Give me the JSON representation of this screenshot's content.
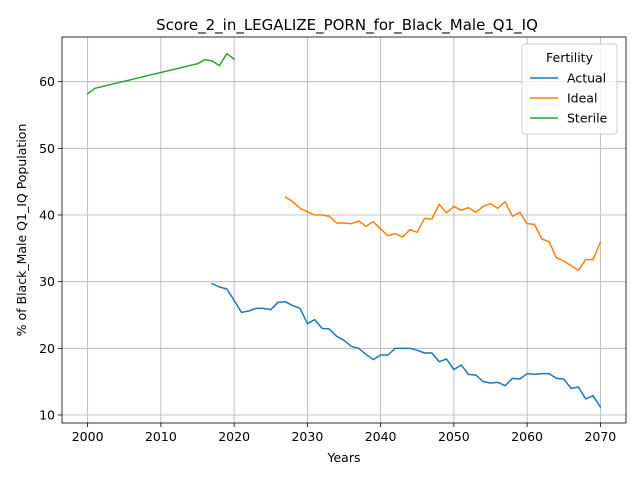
{
  "chart_data": {
    "type": "line",
    "title": "Score_2_in_LEGALIZE_PORN_for_Black_Male_Q1_IQ",
    "xlabel": "Years",
    "ylabel": "% of Black_Male Q1_IQ Population",
    "xlim": [
      1996.5,
      2073.5
    ],
    "ylim": [
      8.8,
      66.7
    ],
    "xticks": [
      2000,
      2010,
      2020,
      2030,
      2040,
      2050,
      2060,
      2070
    ],
    "yticks": [
      10,
      20,
      30,
      40,
      50,
      60
    ],
    "grid": true,
    "legend": {
      "title": "Fertility",
      "placement": "top-right"
    },
    "series": [
      {
        "name": "Actual",
        "color": "#1f77b4",
        "x": [
          2017,
          2018,
          2019,
          2020,
          2021,
          2022,
          2023,
          2024,
          2025,
          2026,
          2027,
          2028,
          2029,
          2030,
          2031,
          2032,
          2033,
          2034,
          2035,
          2036,
          2037,
          2038,
          2039,
          2040,
          2041,
          2042,
          2043,
          2044,
          2045,
          2046,
          2047,
          2048,
          2049,
          2050,
          2051,
          2052,
          2053,
          2054,
          2055,
          2056,
          2057,
          2058,
          2059,
          2060,
          2061,
          2062,
          2063,
          2064,
          2065,
          2066,
          2067,
          2068,
          2069,
          2070
        ],
        "y": [
          29.7,
          29.2,
          28.9,
          27.2,
          25.4,
          25.6,
          26.0,
          26.0,
          25.8,
          26.9,
          27.0,
          26.4,
          26.0,
          23.7,
          24.3,
          23.0,
          22.9,
          21.8,
          21.2,
          20.3,
          20.0,
          19.1,
          18.3,
          19.0,
          19.0,
          20.0,
          20.0,
          20.0,
          19.7,
          19.3,
          19.3,
          18.0,
          18.4,
          16.8,
          17.5,
          16.1,
          16.0,
          15.0,
          14.8,
          14.9,
          14.4,
          15.5,
          15.4,
          16.2,
          16.1,
          16.2,
          16.2,
          15.5,
          15.4,
          14.0,
          14.2,
          12.4,
          12.9,
          11.2
        ]
      },
      {
        "name": "Ideal",
        "color": "#ff7f0e",
        "x": [
          2027,
          2028,
          2029,
          2030,
          2031,
          2032,
          2033,
          2034,
          2035,
          2036,
          2037,
          2038,
          2039,
          2040,
          2041,
          2042,
          2043,
          2044,
          2045,
          2046,
          2047,
          2048,
          2049,
          2050,
          2051,
          2052,
          2053,
          2054,
          2055,
          2056,
          2057,
          2058,
          2059,
          2060,
          2061,
          2062,
          2063,
          2064,
          2065,
          2066,
          2067,
          2068,
          2069,
          2070
        ],
        "y": [
          42.7,
          42.0,
          41.0,
          40.5,
          40.0,
          40.0,
          39.8,
          38.8,
          38.8,
          38.7,
          39.1,
          38.3,
          39.0,
          37.9,
          36.9,
          37.2,
          36.7,
          37.8,
          37.4,
          39.5,
          39.4,
          41.6,
          40.3,
          41.3,
          40.7,
          41.1,
          40.4,
          41.3,
          41.7,
          41.0,
          42.0,
          39.8,
          40.4,
          38.7,
          38.6,
          36.4,
          36.0,
          33.6,
          33.1,
          32.4,
          31.7,
          33.3,
          33.3,
          35.9
        ]
      },
      {
        "name": "Sterile",
        "color": "#2ca02c",
        "x": [
          2000,
          2001,
          2015,
          2016,
          2017,
          2018,
          2019,
          2020
        ],
        "y": [
          58.2,
          59.0,
          62.7,
          63.3,
          63.1,
          62.4,
          64.2,
          63.4
        ]
      }
    ]
  }
}
